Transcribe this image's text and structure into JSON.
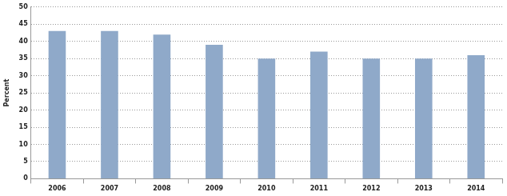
{
  "chart_data": {
    "type": "bar",
    "y_label": "Percent",
    "categories": [
      "2006",
      "2007",
      "2008",
      "2009",
      "2010",
      "2011",
      "2012",
      "2013",
      "2014"
    ],
    "values": [
      43,
      43,
      42,
      39,
      35,
      37,
      35,
      35,
      36
    ],
    "color": "#8fa9c9",
    "ylim": [
      0,
      50
    ],
    "yticks": [
      0,
      5,
      10,
      15,
      20,
      25,
      30,
      35,
      40,
      45,
      50
    ],
    "grid": true
  }
}
